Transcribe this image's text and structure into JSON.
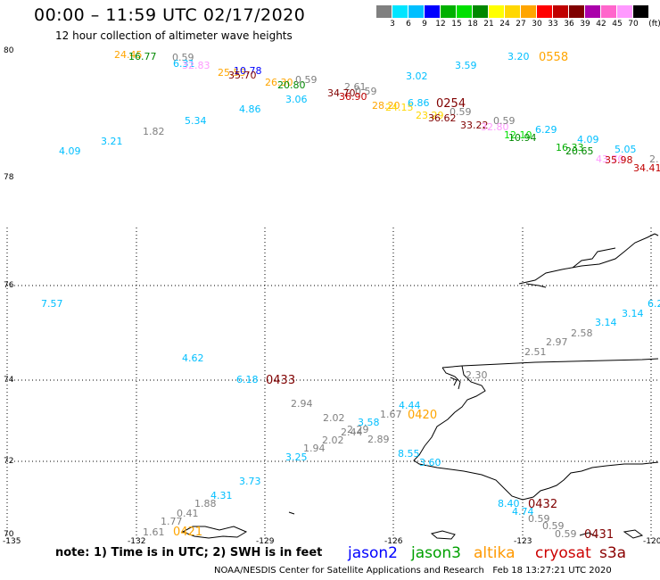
{
  "title": "00:00 – 11:59 UTC 02/17/2020",
  "subtitle": "12 hour collection of altimeter wave heights",
  "colorbar": {
    "labels": [
      "3",
      "6",
      "9",
      "12",
      "15",
      "18",
      "21",
      "24",
      "27",
      "30",
      "33",
      "36",
      "39",
      "42",
      "45",
      "70"
    ],
    "unit": "(ft)",
    "colors": [
      "#808080",
      "#00e5ff",
      "#00bfff",
      "#0000ff",
      "#00b000",
      "#00e000",
      "#008800",
      "#ffff00",
      "#ffd700",
      "#ffa500",
      "#ff0000",
      "#c00000",
      "#800000",
      "#aa00aa",
      "#ff66cc",
      "#ff99ff",
      "#000000"
    ]
  },
  "axes": {
    "lon_labels": [
      "-135",
      "-132",
      "-129",
      "-126",
      "-123",
      "-120"
    ],
    "lat_labels": [
      "80",
      "78",
      "76",
      "74",
      "72",
      "70"
    ]
  },
  "wave_labels": [
    {
      "t": "24.45",
      "c": "#ffa500"
    },
    {
      "t": "16.77",
      "c": "#008800"
    },
    {
      "t": "0.59",
      "c": "#808080"
    },
    {
      "t": "6.31",
      "c": "#00bfff"
    },
    {
      "t": "32.83",
      "c": "#ff99ff"
    },
    {
      "t": "25.55",
      "c": "#ffa500"
    },
    {
      "t": "10.78",
      "c": "#0000ff"
    },
    {
      "t": "35.70",
      "c": "#800000"
    },
    {
      "t": "26.30",
      "c": "#ffa500"
    },
    {
      "t": "20.80",
      "c": "#008800"
    },
    {
      "t": "0.59",
      "c": "#808080"
    },
    {
      "t": "3.06",
      "c": "#00bfff"
    },
    {
      "t": "4.86",
      "c": "#00bfff"
    },
    {
      "t": "5.34",
      "c": "#00bfff"
    },
    {
      "t": "1.82",
      "c": "#808080"
    },
    {
      "t": "3.21",
      "c": "#00bfff"
    },
    {
      "t": "4.09",
      "c": "#00bfff"
    },
    {
      "t": "3.02",
      "c": "#00bfff"
    },
    {
      "t": "3.59",
      "c": "#00bfff"
    },
    {
      "t": "3.20",
      "c": "#00bfff"
    },
    {
      "t": "2.61",
      "c": "#808080"
    },
    {
      "t": "0.59",
      "c": "#808080"
    },
    {
      "t": "34.70",
      "c": "#800000"
    },
    {
      "t": "36.90",
      "c": "#c00000"
    },
    {
      "t": "28.20",
      "c": "#ffa500"
    },
    {
      "t": "24.15",
      "c": "#ffd700"
    },
    {
      "t": "6.86",
      "c": "#00bfff"
    },
    {
      "t": "23.29",
      "c": "#ffd700"
    },
    {
      "t": "0.59",
      "c": "#808080"
    },
    {
      "t": "36.62",
      "c": "#800000"
    },
    {
      "t": "33.22",
      "c": "#800000"
    },
    {
      "t": "32.80",
      "c": "#ff99ff"
    },
    {
      "t": "0.59",
      "c": "#808080"
    },
    {
      "t": "12.10",
      "c": "#00e000"
    },
    {
      "t": "10.94",
      "c": "#008800"
    },
    {
      "t": "6.29",
      "c": "#00bfff"
    },
    {
      "t": "16.33",
      "c": "#00b000"
    },
    {
      "t": "4.09",
      "c": "#00bfff"
    },
    {
      "t": "20.65",
      "c": "#008800"
    },
    {
      "t": "5.05",
      "c": "#00bfff"
    },
    {
      "t": "43.70",
      "c": "#ff99ff"
    },
    {
      "t": "35.98",
      "c": "#c00000"
    },
    {
      "t": "2.",
      "c": "#808080"
    },
    {
      "t": "34.41",
      "c": "#c00000"
    },
    {
      "t": "7.57",
      "c": "#00bfff"
    },
    {
      "t": "6.2",
      "c": "#00bfff"
    },
    {
      "t": "3.14",
      "c": "#00bfff"
    },
    {
      "t": "3.14",
      "c": "#00bfff"
    },
    {
      "t": "2.58",
      "c": "#808080"
    },
    {
      "t": "2.97",
      "c": "#808080"
    },
    {
      "t": "2.51",
      "c": "#808080"
    },
    {
      "t": "4.62",
      "c": "#00bfff"
    },
    {
      "t": "6.18",
      "c": "#00bfff"
    },
    {
      "t": "2.30",
      "c": "#808080"
    },
    {
      "t": "2.94",
      "c": "#808080"
    },
    {
      "t": "4.44",
      "c": "#00bfff"
    },
    {
      "t": "1.67",
      "c": "#808080"
    },
    {
      "t": "2.02",
      "c": "#808080"
    },
    {
      "t": "3.58",
      "c": "#00bfff"
    },
    {
      "t": "2.29",
      "c": "#808080"
    },
    {
      "t": "2.44",
      "c": "#808080"
    },
    {
      "t": "2.89",
      "c": "#808080"
    },
    {
      "t": "2.02",
      "c": "#808080"
    },
    {
      "t": "1.94",
      "c": "#808080"
    },
    {
      "t": "3.25",
      "c": "#00bfff"
    },
    {
      "t": "8.55",
      "c": "#00bfff"
    },
    {
      "t": "3.60",
      "c": "#00bfff"
    },
    {
      "t": "3.73",
      "c": "#00bfff"
    },
    {
      "t": "4.31",
      "c": "#00bfff"
    },
    {
      "t": "1.88",
      "c": "#808080"
    },
    {
      "t": "0.41",
      "c": "#808080"
    },
    {
      "t": "1.77",
      "c": "#808080"
    },
    {
      "t": "1.61",
      "c": "#808080"
    },
    {
      "t": "8.40",
      "c": "#00bfff"
    },
    {
      "t": "4.74",
      "c": "#00bfff"
    },
    {
      "t": "0.59",
      "c": "#808080"
    },
    {
      "t": "0.59",
      "c": "#808080"
    },
    {
      "t": "0.59",
      "c": "#808080"
    }
  ],
  "pass_times": [
    {
      "t": "0558",
      "c": "#ffa500"
    },
    {
      "t": "0254",
      "c": "#800000"
    },
    {
      "t": "0433",
      "c": "#800000"
    },
    {
      "t": "0420",
      "c": "#ffa500"
    },
    {
      "t": "0432",
      "c": "#800000"
    },
    {
      "t": "0431",
      "c": "#800000"
    },
    {
      "t": "0421",
      "c": "#ffa500"
    }
  ],
  "note": "note: 1) Time is in UTC; 2) SWH is in feet",
  "satellites": [
    {
      "name": "jason2",
      "color": "#0000ff"
    },
    {
      "name": "jason3",
      "color": "#00a000"
    },
    {
      "name": "altika",
      "color": "#ff9900"
    },
    {
      "name": "cryosat",
      "color": "#cc0000"
    },
    {
      "name": "s3a",
      "color": "#8b0000"
    }
  ],
  "credit": "NOAA/NESDIS Center for Satellite Applications and Research   Feb 18 13:27:21 UTC 2020"
}
